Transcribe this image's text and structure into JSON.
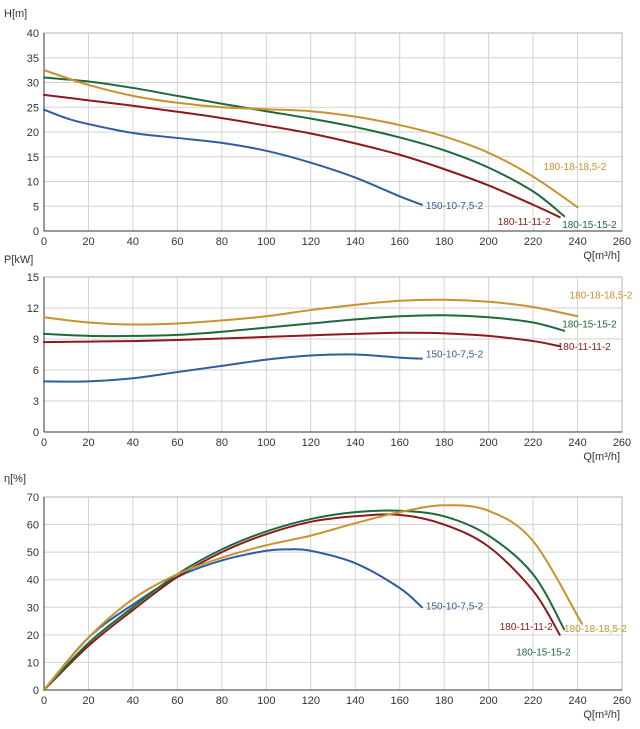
{
  "chart_data": [
    {
      "type": "line",
      "ylabel": "H[m]",
      "xlabel": "Q[m³/h]",
      "xlim": [
        0,
        260
      ],
      "ylim": [
        0,
        40
      ],
      "xticks": [
        "0",
        "20",
        "40",
        "60",
        "80",
        "100",
        "120",
        "140",
        "160",
        "180",
        "200",
        "220",
        "240",
        "260"
      ],
      "yticks": [
        "0",
        "5",
        "10",
        "15",
        "20",
        "25",
        "30",
        "35",
        "40"
      ],
      "grid": true,
      "series": [
        {
          "name": "150-10-7,5-2",
          "color": "#2f5d9e",
          "x": [
            0,
            10,
            20,
            40,
            60,
            80,
            100,
            120,
            140,
            160,
            170
          ],
          "y": [
            24.5,
            22.8,
            21.6,
            19.8,
            18.8,
            17.8,
            16.2,
            13.8,
            10.8,
            7.0,
            5.3
          ]
        },
        {
          "name": "180-11-11-2",
          "color": "#8b1a1a",
          "x": [
            0,
            20,
            40,
            60,
            80,
            100,
            120,
            140,
            160,
            180,
            200,
            220,
            232
          ],
          "y": [
            27.5,
            26.4,
            25.3,
            24.1,
            22.8,
            21.3,
            19.7,
            17.7,
            15.4,
            12.5,
            9.2,
            5.3,
            2.8
          ]
        },
        {
          "name": "180-15-15-2",
          "color": "#1d6b3a",
          "x": [
            0,
            20,
            40,
            60,
            80,
            100,
            120,
            140,
            160,
            180,
            200,
            220,
            234
          ],
          "y": [
            31.0,
            30.2,
            28.9,
            27.3,
            25.7,
            24.2,
            22.7,
            21.0,
            18.9,
            16.3,
            12.8,
            8.0,
            3.0
          ]
        },
        {
          "name": "180-18-18,5-2",
          "color": "#c8922e",
          "x": [
            0,
            20,
            40,
            60,
            80,
            100,
            120,
            140,
            160,
            180,
            200,
            220,
            240
          ],
          "y": [
            32.5,
            29.5,
            27.3,
            25.9,
            25.0,
            24.6,
            24.2,
            23.1,
            21.4,
            19.1,
            15.8,
            11.0,
            4.8
          ]
        }
      ]
    },
    {
      "type": "line",
      "ylabel": "P[kW]",
      "xlabel": "Q[m³/h]",
      "xlim": [
        0,
        260
      ],
      "ylim": [
        0,
        15
      ],
      "xticks": [
        "0",
        "20",
        "40",
        "60",
        "80",
        "100",
        "120",
        "140",
        "160",
        "180",
        "200",
        "220",
        "240",
        "260"
      ],
      "yticks": [
        "0",
        "3",
        "6",
        "9",
        "12",
        "15"
      ],
      "grid": true,
      "series": [
        {
          "name": "150-10-7,5-2",
          "color": "#2f5d9e",
          "x": [
            0,
            20,
            40,
            60,
            80,
            100,
            120,
            140,
            160,
            170
          ],
          "y": [
            4.9,
            4.9,
            5.2,
            5.8,
            6.4,
            7.0,
            7.4,
            7.5,
            7.2,
            7.1
          ]
        },
        {
          "name": "180-11-11-2",
          "color": "#8b1a1a",
          "x": [
            0,
            20,
            40,
            60,
            80,
            100,
            120,
            140,
            160,
            180,
            200,
            220,
            232
          ],
          "y": [
            8.7,
            8.75,
            8.8,
            8.9,
            9.05,
            9.2,
            9.35,
            9.5,
            9.6,
            9.55,
            9.3,
            8.8,
            8.3
          ]
        },
        {
          "name": "180-15-15-2",
          "color": "#1d6b3a",
          "x": [
            0,
            20,
            40,
            60,
            80,
            100,
            120,
            140,
            160,
            180,
            200,
            220,
            234
          ],
          "y": [
            9.5,
            9.3,
            9.3,
            9.4,
            9.7,
            10.1,
            10.5,
            10.9,
            11.2,
            11.3,
            11.1,
            10.6,
            9.8
          ]
        },
        {
          "name": "180-18-18,5-2",
          "color": "#c8922e",
          "x": [
            0,
            20,
            40,
            60,
            80,
            100,
            120,
            140,
            160,
            180,
            200,
            220,
            240
          ],
          "y": [
            11.1,
            10.6,
            10.4,
            10.5,
            10.8,
            11.2,
            11.8,
            12.3,
            12.7,
            12.8,
            12.6,
            12.1,
            11.2
          ]
        }
      ]
    },
    {
      "type": "line",
      "ylabel": "η[%]",
      "xlabel": "Q[m³/h]",
      "xlim": [
        0,
        260
      ],
      "ylim": [
        0,
        70
      ],
      "xticks": [
        "0",
        "20",
        "40",
        "60",
        "80",
        "100",
        "120",
        "140",
        "160",
        "180",
        "200",
        "220",
        "240",
        "260"
      ],
      "yticks": [
        "0",
        "10",
        "20",
        "30",
        "40",
        "50",
        "60",
        "70"
      ],
      "grid": true,
      "series": [
        {
          "name": "150-10-7,5-2",
          "color": "#2f5d9e",
          "x": [
            0,
            20,
            40,
            60,
            80,
            100,
            110,
            120,
            140,
            160,
            170
          ],
          "y": [
            0,
            19,
            31,
            41,
            47,
            50.5,
            51,
            50.5,
            46,
            37,
            30
          ]
        },
        {
          "name": "180-11-11-2",
          "color": "#8b1a1a",
          "x": [
            0,
            20,
            40,
            60,
            80,
            100,
            120,
            140,
            160,
            180,
            200,
            220,
            232
          ],
          "y": [
            0,
            16,
            29,
            41,
            50,
            56.5,
            61,
            63,
            63.5,
            60,
            52,
            36,
            20
          ]
        },
        {
          "name": "180-15-15-2",
          "color": "#1d6b3a",
          "x": [
            0,
            20,
            40,
            60,
            80,
            100,
            120,
            140,
            160,
            180,
            200,
            220,
            234
          ],
          "y": [
            0,
            17,
            30,
            42,
            51,
            57.5,
            62,
            64.5,
            65,
            63,
            56,
            42,
            22
          ]
        },
        {
          "name": "180-18-18,5-2",
          "color": "#c8922e",
          "x": [
            0,
            20,
            40,
            60,
            80,
            100,
            120,
            140,
            160,
            180,
            200,
            220,
            242
          ],
          "y": [
            0,
            19,
            33,
            42,
            48,
            52.5,
            56,
            60.5,
            64.5,
            67,
            65,
            54,
            24
          ]
        }
      ]
    }
  ]
}
